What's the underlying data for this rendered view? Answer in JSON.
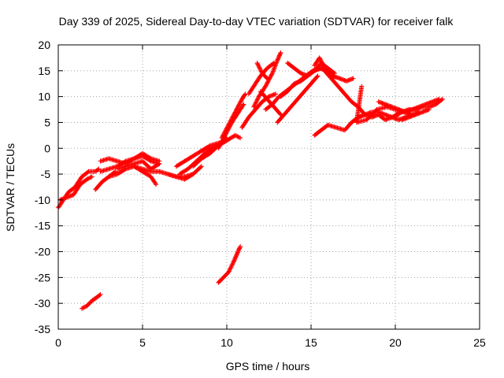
{
  "chart_data": {
    "type": "scatter",
    "title": "Day 339 of 2025, Sidereal Day-to-day VTEC variation (SDTVAR) for receiver falk",
    "xlabel": "GPS time / hours",
    "ylabel": "SDTVAR / TECUs",
    "xlim": [
      0,
      25
    ],
    "ylim": [
      -35,
      20
    ],
    "xticks": [
      0,
      5,
      10,
      15,
      20,
      25
    ],
    "yticks": [
      -35,
      -30,
      -25,
      -20,
      -15,
      -10,
      -5,
      0,
      5,
      10,
      15,
      20
    ],
    "grid": true,
    "legend": "none",
    "marker": "plus",
    "color": "#ff0000",
    "series": [
      {
        "x": [
          0.0,
          0.3,
          0.6,
          1.0,
          1.4,
          1.8,
          2.2,
          2.4
        ],
        "y": [
          -11.5,
          -10.0,
          -8.5,
          -7.5,
          -5.5,
          -4.5,
          -4.5,
          -4.0
        ]
      },
      {
        "x": [
          0.1,
          0.5,
          0.9,
          1.3,
          1.7,
          2.0
        ],
        "y": [
          -10.0,
          -9.5,
          -9.0,
          -7.0,
          -6.0,
          -5.5
        ]
      },
      {
        "x": [
          2.2,
          2.6,
          3.0,
          3.4
        ],
        "y": [
          -8.0,
          -6.5,
          -5.5,
          -4.5
        ]
      },
      {
        "x": [
          2.5,
          3.0,
          3.5,
          4.0,
          4.5,
          5.0,
          5.5,
          6.0
        ],
        "y": [
          -4.5,
          -4.0,
          -3.5,
          -2.5,
          -2.0,
          -1.5,
          -2.5,
          -3.0
        ]
      },
      {
        "x": [
          2.5,
          3.0,
          3.5,
          4.0,
          4.5,
          5.0,
          5.5,
          6.0
        ],
        "y": [
          -2.5,
          -2.0,
          -2.5,
          -3.0,
          -2.0,
          -1.0,
          -2.0,
          -2.5
        ]
      },
      {
        "x": [
          3.0,
          3.5,
          4.0,
          4.5,
          5.0,
          5.5,
          5.8
        ],
        "y": [
          -5.5,
          -5.0,
          -4.0,
          -3.5,
          -4.5,
          -5.5,
          -7.0
        ]
      },
      {
        "x": [
          3.5,
          4.0,
          4.5,
          5.0,
          5.5,
          6.0
        ],
        "y": [
          -4.0,
          -3.5,
          -3.0,
          -2.5,
          -4.0,
          -3.0
        ]
      },
      {
        "x": [
          4.5,
          5.0,
          5.5,
          6.0,
          6.5,
          7.0,
          7.5,
          8.0
        ],
        "y": [
          -3.5,
          -4.0,
          -4.5,
          -4.5,
          -5.0,
          -5.5,
          -5.5,
          -5.0
        ]
      },
      {
        "x": [
          6.5,
          7.0,
          7.5,
          8.0,
          8.5
        ],
        "y": [
          -5.0,
          -5.5,
          -6.0,
          -5.0,
          -3.5
        ]
      },
      {
        "x": [
          7.0,
          7.5,
          8.0,
          8.5,
          9.0,
          9.5,
          10.0
        ],
        "y": [
          -3.5,
          -2.5,
          -1.5,
          -0.5,
          0.0,
          0.5,
          1.5
        ]
      },
      {
        "x": [
          7.2,
          7.7,
          8.2,
          8.7,
          9.2,
          9.7
        ],
        "y": [
          -5.0,
          -4.0,
          -2.5,
          -1.0,
          0.0,
          1.0
        ]
      },
      {
        "x": [
          8.0,
          8.5,
          9.0,
          9.5,
          10.0
        ],
        "y": [
          -3.5,
          -2.0,
          -1.0,
          0.5,
          2.0
        ]
      },
      {
        "x": [
          8.5,
          9.0,
          9.5,
          10.0,
          10.5,
          10.8
        ],
        "y": [
          -0.5,
          0.5,
          1.0,
          1.5,
          2.5,
          2.0
        ]
      },
      {
        "x": [
          9.5,
          9.9,
          10.3,
          10.7,
          11.0
        ],
        "y": [
          0.0,
          2.5,
          5.0,
          7.0,
          8.5
        ]
      },
      {
        "x": [
          9.7,
          10.1,
          10.5,
          10.9,
          11.1
        ],
        "y": [
          2.0,
          4.5,
          7.0,
          9.5,
          10.5
        ]
      },
      {
        "x": [
          10.9,
          11.3,
          11.7,
          12.1,
          12.5,
          12.9
        ],
        "y": [
          4.0,
          6.0,
          7.5,
          9.0,
          10.0,
          10.5
        ]
      },
      {
        "x": [
          11.3,
          11.6,
          12.0,
          12.4,
          12.8
        ],
        "y": [
          10.5,
          12.0,
          14.0,
          15.5,
          16.5
        ]
      },
      {
        "x": [
          11.6,
          11.9,
          12.3,
          12.7,
          13.0,
          13.2
        ],
        "y": [
          8.0,
          10.0,
          12.0,
          14.5,
          17.0,
          18.5
        ]
      },
      {
        "x": [
          11.8,
          12.1,
          12.4
        ],
        "y": [
          16.5,
          14.5,
          13.5
        ]
      },
      {
        "x": [
          12.0,
          12.4,
          12.8,
          13.2
        ],
        "y": [
          11.0,
          9.5,
          8.0,
          6.5
        ]
      },
      {
        "x": [
          12.3,
          12.7,
          13.1,
          13.5,
          13.9,
          14.3,
          14.7,
          15.1,
          15.5,
          15.9,
          16.3
        ],
        "y": [
          7.5,
          8.5,
          10.0,
          11.0,
          12.0,
          13.0,
          14.0,
          15.0,
          15.5,
          15.0,
          13.5
        ]
      },
      {
        "x": [
          13.0,
          13.4,
          13.8,
          14.2,
          14.6,
          15.0,
          15.4
        ],
        "y": [
          5.0,
          6.5,
          8.0,
          9.5,
          11.0,
          12.5,
          14.0
        ]
      },
      {
        "x": [
          13.2,
          13.6,
          14.0,
          14.4,
          14.8,
          15.2,
          15.6,
          16.0
        ],
        "y": [
          10.0,
          11.0,
          12.5,
          13.0,
          14.0,
          15.0,
          15.5,
          15.0
        ]
      },
      {
        "x": [
          13.6,
          14.0,
          14.4,
          14.8,
          15.2,
          15.6,
          16.0,
          16.4
        ],
        "y": [
          16.5,
          15.5,
          14.5,
          14.0,
          15.0,
          16.5,
          15.5,
          14.5
        ]
      },
      {
        "x": [
          15.2,
          15.5,
          15.9,
          16.3,
          16.7,
          17.1,
          17.5
        ],
        "y": [
          16.0,
          17.5,
          15.0,
          14.0,
          13.5,
          13.0,
          13.5
        ]
      },
      {
        "x": [
          15.8,
          16.2,
          16.6,
          17.0,
          17.4,
          17.8,
          18.2
        ],
        "y": [
          15.0,
          13.5,
          12.0,
          10.5,
          9.0,
          8.0,
          6.5
        ]
      },
      {
        "x": [
          15.2,
          15.6,
          16.0,
          16.5,
          17.0,
          17.4,
          17.8,
          18.2,
          18.6,
          19.0,
          19.4,
          19.8,
          20.2
        ],
        "y": [
          2.5,
          3.5,
          4.5,
          4.0,
          3.5,
          5.0,
          6.0,
          6.5,
          6.0,
          6.5,
          5.5,
          6.0,
          6.5
        ]
      },
      {
        "x": [
          17.8,
          18.2,
          18.6,
          19.0,
          19.4,
          19.8,
          20.2,
          20.6,
          21.0,
          21.4
        ],
        "y": [
          6.0,
          6.5,
          7.0,
          7.0,
          6.5,
          6.0,
          5.5,
          6.0,
          6.5,
          7.0
        ]
      },
      {
        "x": [
          19.0,
          19.4,
          19.8,
          20.2,
          20.6,
          21.0,
          21.4,
          21.8,
          22.2,
          22.6
        ],
        "y": [
          9.0,
          8.5,
          8.0,
          7.5,
          7.0,
          7.5,
          8.0,
          8.5,
          9.0,
          9.5
        ]
      },
      {
        "x": [
          20.0,
          20.4,
          20.8,
          21.2,
          21.6,
          22.0,
          22.4,
          22.8
        ],
        "y": [
          6.5,
          7.0,
          7.5,
          7.5,
          8.0,
          8.0,
          8.5,
          9.5
        ]
      },
      {
        "x": [
          20.4,
          20.8,
          21.2,
          21.6,
          22.0
        ],
        "y": [
          5.5,
          6.0,
          6.5,
          7.0,
          7.5
        ]
      },
      {
        "x": [
          1.4,
          1.7,
          2.0,
          2.3,
          2.5
        ],
        "y": [
          -31.0,
          -30.5,
          -29.5,
          -28.8,
          -28.3
        ]
      },
      {
        "x": [
          9.5,
          9.8,
          10.1,
          10.4,
          10.6,
          10.8
        ],
        "y": [
          -26.0,
          -25.0,
          -24.0,
          -22.0,
          -20.5,
          -19.0
        ]
      },
      {
        "x": [
          18.0,
          17.7,
          18.3,
          18.9,
          19.5,
          21.0
        ],
        "y": [
          12.0,
          5.0,
          5.5,
          7.5,
          8.0,
          6.5
        ]
      }
    ]
  }
}
